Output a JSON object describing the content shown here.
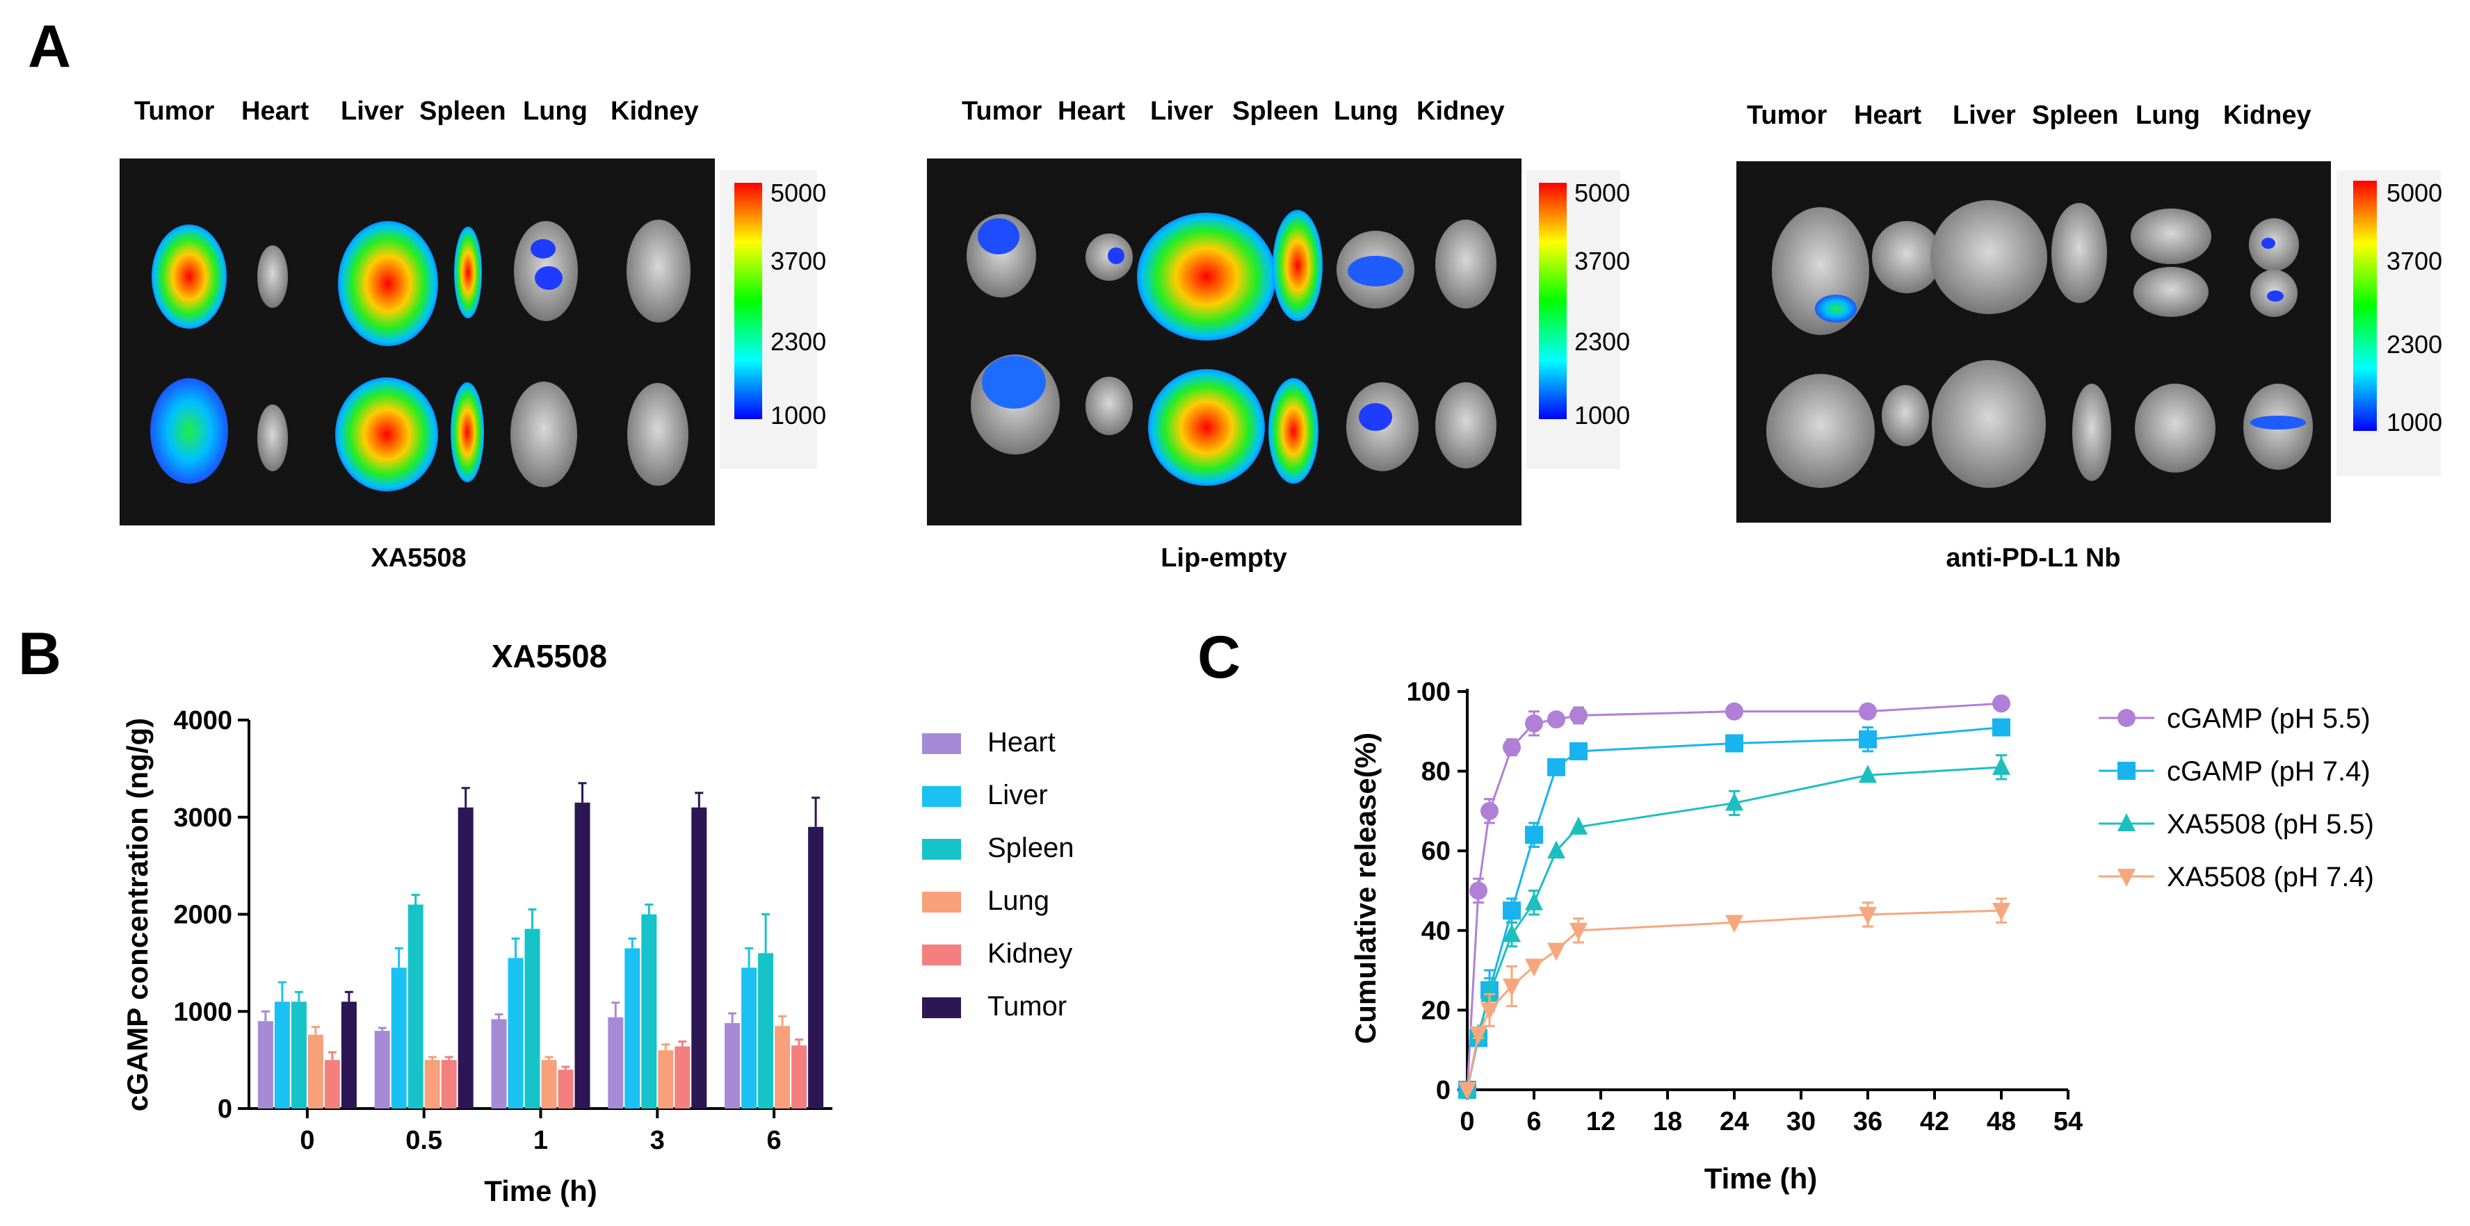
{
  "panels": {
    "a": "A",
    "b": "B",
    "c": "C"
  },
  "panel_a": {
    "groups": [
      {
        "caption": "XA5508",
        "organs": [
          "Tumor",
          "Heart",
          "Liver",
          "Spleen",
          "Lung",
          "Kidney"
        ]
      },
      {
        "caption": "Lip-empty",
        "organs": [
          "Tumor",
          "Heart",
          "Liver",
          "Spleen",
          "Lung",
          "Kidney"
        ]
      },
      {
        "caption": "anti-PD-L1 Nb",
        "organs": [
          "Tumor",
          "Heart",
          "Liver",
          "Spleen",
          "Lung",
          "Kidney"
        ]
      }
    ],
    "colorbar_ticks": [
      "5000",
      "3700",
      "2300",
      "1000"
    ],
    "colorbar_colors": [
      "#ff0000",
      "#ffff00",
      "#00ff00",
      "#00ffff",
      "#0000ff"
    ]
  },
  "chart_data": [
    {
      "type": "bar",
      "title": "XA5508",
      "xlabel": "Time (h)",
      "ylabel": "cGAMP concentration (ng/g)",
      "ylim": [
        0,
        4000
      ],
      "yticks": [
        0,
        1000,
        2000,
        3000,
        4000
      ],
      "categories": [
        "0",
        "0.5",
        "1",
        "3",
        "6"
      ],
      "legend_position": "right",
      "series": [
        {
          "name": "Heart",
          "color": "#a68ad6",
          "values": [
            900,
            800,
            920,
            940,
            880
          ],
          "errors": [
            100,
            30,
            50,
            150,
            100
          ]
        },
        {
          "name": "Liver",
          "color": "#19c2f2",
          "values": [
            1100,
            1450,
            1550,
            1650,
            1450
          ],
          "errors": [
            200,
            200,
            200,
            100,
            200
          ]
        },
        {
          "name": "Spleen",
          "color": "#16c3c8",
          "values": [
            1100,
            2100,
            1850,
            2000,
            1600
          ],
          "errors": [
            100,
            100,
            200,
            100,
            400
          ]
        },
        {
          "name": "Lung",
          "color": "#f7a07a",
          "values": [
            760,
            500,
            500,
            600,
            850
          ],
          "errors": [
            80,
            30,
            30,
            60,
            100
          ]
        },
        {
          "name": "Kidney",
          "color": "#f47f7f",
          "values": [
            500,
            500,
            400,
            640,
            650
          ],
          "errors": [
            80,
            30,
            30,
            50,
            60
          ]
        },
        {
          "name": "Tumor",
          "color": "#2c1654",
          "values": [
            1100,
            3100,
            3150,
            3100,
            2900
          ],
          "errors": [
            100,
            200,
            200,
            150,
            300
          ]
        }
      ]
    },
    {
      "type": "line",
      "title": "",
      "xlabel": "Time (h)",
      "ylabel": "Cumulative release(%)",
      "xlim": [
        0,
        54
      ],
      "ylim": [
        0,
        100
      ],
      "xticks": [
        0,
        6,
        12,
        18,
        24,
        30,
        36,
        42,
        48,
        54
      ],
      "yticks": [
        0,
        20,
        40,
        60,
        80,
        100
      ],
      "x": [
        0,
        1,
        2,
        4,
        6,
        8,
        10,
        24,
        36,
        48
      ],
      "legend_position": "right",
      "series": [
        {
          "name": "cGAMP (pH 5.5)",
          "color": "#b07fd6",
          "marker": "circle",
          "values": [
            0,
            50,
            70,
            86,
            92,
            93,
            94,
            95,
            95,
            97
          ],
          "errors": [
            0,
            3,
            3,
            2,
            3,
            0,
            2,
            0,
            0,
            0
          ]
        },
        {
          "name": "cGAMP (pH 7.4)",
          "color": "#19b4ef",
          "marker": "square",
          "values": [
            0,
            13,
            25,
            45,
            64,
            81,
            85,
            87,
            88,
            91
          ],
          "errors": [
            0,
            1,
            5,
            3,
            3,
            0,
            0,
            0,
            3,
            0
          ]
        },
        {
          "name": "XA5508 (pH 5.5)",
          "color": "#1cbfbf",
          "marker": "triangle-up",
          "values": [
            0,
            14,
            24,
            39,
            47,
            60,
            66,
            72,
            79,
            81
          ],
          "errors": [
            0,
            1,
            4,
            3,
            3,
            0,
            0,
            3,
            0,
            3
          ]
        },
        {
          "name": "XA5508 (pH 7.4)",
          "color": "#f7a77d",
          "marker": "triangle-down",
          "values": [
            0,
            14,
            20,
            26,
            31,
            35,
            40,
            42,
            44,
            45
          ],
          "errors": [
            0,
            1,
            4,
            5,
            0,
            0,
            3,
            0,
            3,
            3
          ]
        }
      ]
    }
  ]
}
